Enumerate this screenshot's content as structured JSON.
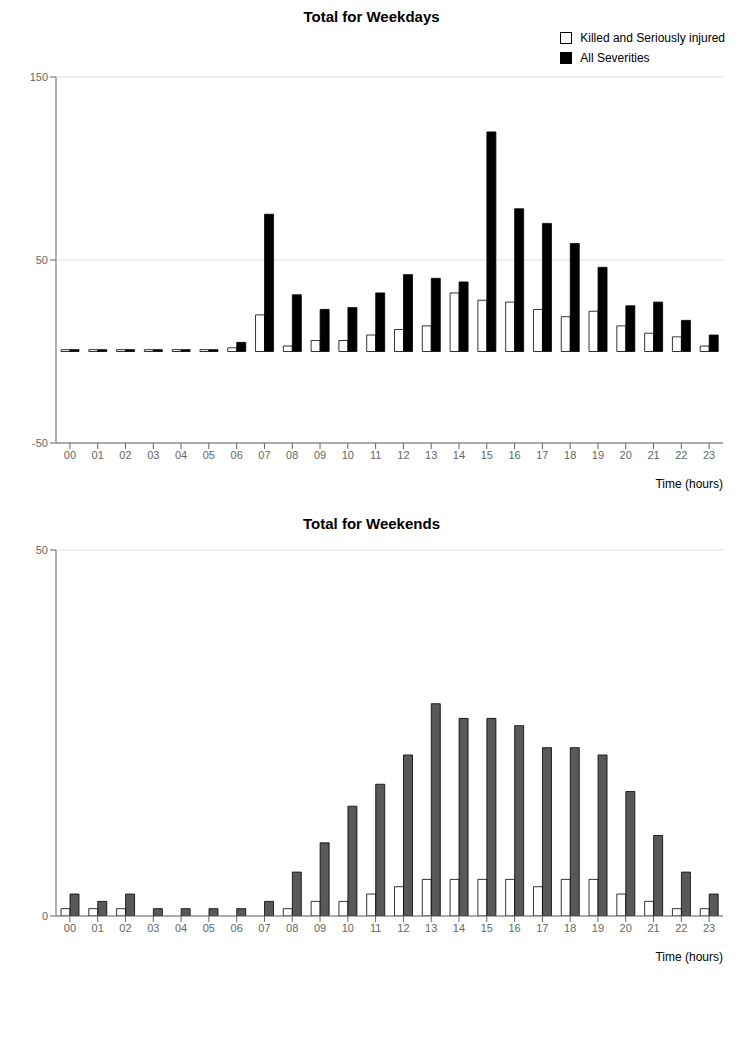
{
  "chart_data": [
    {
      "type": "bar",
      "title": "Total for Weekdays",
      "xlabel": "Time (hours)",
      "categories": [
        "00",
        "01",
        "02",
        "03",
        "04",
        "05",
        "06",
        "07",
        "08",
        "09",
        "10",
        "11",
        "12",
        "13",
        "14",
        "15",
        "16",
        "17",
        "18",
        "19",
        "20",
        "21",
        "22",
        "23"
      ],
      "series": [
        {
          "name": "Killed and Seriously injured",
          "color": "#ffffff",
          "values": [
            1,
            1,
            1,
            1,
            1,
            1,
            2,
            20,
            3,
            6,
            6,
            9,
            12,
            14,
            32,
            28,
            27,
            23,
            19,
            22,
            14,
            10,
            8,
            3
          ]
        },
        {
          "name": "All Severities",
          "color": "#000000",
          "values": [
            1,
            1,
            1,
            1,
            1,
            1,
            5,
            75,
            31,
            23,
            24,
            32,
            42,
            40,
            38,
            120,
            78,
            70,
            59,
            46,
            25,
            27,
            17,
            9
          ]
        }
      ],
      "ylim": [
        -50,
        150
      ],
      "yticks": [
        -50,
        50,
        150
      ],
      "grid": true,
      "legend": "upper right"
    },
    {
      "type": "bar",
      "title": "Total for Weekends",
      "xlabel": "Time (hours)",
      "categories": [
        "00",
        "01",
        "02",
        "03",
        "04",
        "05",
        "06",
        "07",
        "08",
        "09",
        "10",
        "11",
        "12",
        "13",
        "14",
        "15",
        "16",
        "17",
        "18",
        "19",
        "20",
        "21",
        "22",
        "23"
      ],
      "series": [
        {
          "name": "Killed and Seriously injured",
          "color": "#ffffff",
          "values": [
            1,
            1,
            1,
            0,
            0,
            0,
            0,
            0,
            1,
            2,
            2,
            3,
            4,
            5,
            5,
            5,
            5,
            4,
            5,
            5,
            3,
            2,
            1,
            1
          ]
        },
        {
          "name": "All Severities",
          "color": "#595959",
          "values": [
            3,
            2,
            3,
            1,
            1,
            1,
            1,
            2,
            6,
            10,
            15,
            18,
            22,
            29,
            27,
            27,
            26,
            23,
            23,
            22,
            17,
            11,
            6,
            3
          ]
        }
      ],
      "ylim": [
        0,
        50
      ],
      "yticks": [
        0,
        50
      ],
      "grid": true
    }
  ]
}
